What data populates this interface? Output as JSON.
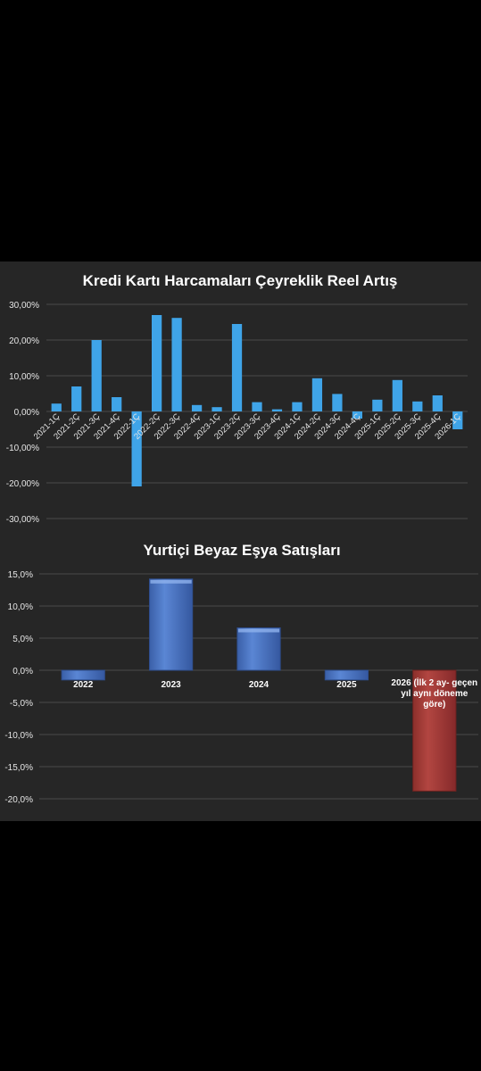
{
  "chart_data": [
    {
      "type": "bar",
      "title": "Kredi Kartı Harcamaları Çeyreklik Reel Artış",
      "categories": [
        "2021-1Ç",
        "2021-2Ç",
        "2021-3Ç",
        "2021-4Ç",
        "2022-1Ç",
        "2022-2Ç",
        "2022-3Ç",
        "2022-4Ç",
        "2023-1Ç",
        "2023-2Ç",
        "2023-3Ç",
        "2023-4Ç",
        "2024-1Ç",
        "2024-2Ç",
        "2024-3Ç",
        "2024-4Ç",
        "2025-1Ç",
        "2025-2Ç",
        "2025-3Ç",
        "2025-4Ç",
        "2026-1Ç"
      ],
      "values": [
        2.2,
        7.0,
        20.0,
        4.0,
        -21.0,
        27.0,
        26.2,
        1.8,
        1.2,
        24.5,
        2.6,
        0.6,
        2.6,
        9.3,
        4.9,
        -2.0,
        3.3,
        8.8,
        2.8,
        4.5,
        -5.0
      ],
      "yticks": [
        "30,00%",
        "20,00%",
        "10,00%",
        "0,00%",
        "-10,00%",
        "-20,00%",
        "-30,00%"
      ],
      "ylim": [
        -30,
        30
      ],
      "grid": true,
      "color": "#3fa4e8"
    },
    {
      "type": "bar",
      "title": "Yurtiçi Beyaz Eşya Satışları",
      "categories": [
        "2022",
        "2023",
        "2024",
        "2025",
        "2026 (İlk 2 ay- geçen yıl aynı döneme göre)"
      ],
      "category_lines": [
        [
          "2022"
        ],
        [
          "2023"
        ],
        [
          "2024"
        ],
        [
          "2025"
        ],
        [
          "2026 (İlk 2 ay- geçen",
          "yıl aynı döneme",
          "göre)"
        ]
      ],
      "values": [
        -1.5,
        14.2,
        6.6,
        -1.5,
        -18.8
      ],
      "yticks": [
        "15,0%",
        "10,0%",
        "5,0%",
        "0,0%",
        "-5,0%",
        "-10,0%",
        "-15,0%",
        "-20,0%"
      ],
      "ylim": [
        -20,
        15
      ],
      "grid": true,
      "colors": [
        "#4a76c8",
        "#4a76c8",
        "#4a76c8",
        "#4a76c8",
        "#a33b36"
      ]
    }
  ]
}
